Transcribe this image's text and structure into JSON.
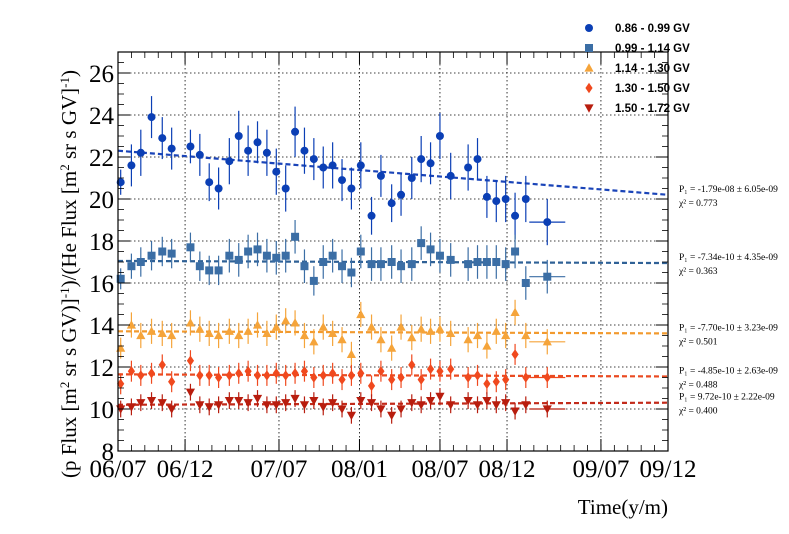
{
  "chart_data": {
    "type": "scatter",
    "xlabel": "Time(y/m)",
    "ylabel": "(p Flux [m² sr s GV]⁻¹)/(He Flux [m² sr s GV]⁻¹)",
    "ylabel_parts": {
      "main1": "(p Flux [m",
      "sup1": "2",
      "main2": " sr s GV)]",
      "sup2": "-1",
      "main3": ")/(He Flux [m",
      "sup3": "2",
      "main4": " sr s GV]",
      "sup4": "-1",
      "main5": ")"
    },
    "x_ticks": [
      {
        "label": "06/07",
        "value": 0
      },
      {
        "label": "06/12",
        "value": 5
      },
      {
        "label": "07/07",
        "value": 12
      },
      {
        "label": "08/01",
        "value": 18
      },
      {
        "label": "08/07",
        "value": 24
      },
      {
        "label": "08/12",
        "value": 29
      },
      {
        "label": "09/07",
        "value": 36
      },
      {
        "label": "09/12",
        "value": 41
      }
    ],
    "xlim": [
      0,
      41
    ],
    "y_ticks": [
      8,
      10,
      12,
      14,
      16,
      18,
      20,
      22,
      24,
      26
    ],
    "ylim": [
      8,
      27
    ],
    "grid": true,
    "legend_position": "top-right",
    "series": [
      {
        "name": "0.86 - 0.99 GV",
        "marker": "circle",
        "color": "#0b3fb5",
        "fit_color": "#1a44b8",
        "fit": {
          "p1": "P₁ = -1.79e-08 ± 6.05e-09",
          "chi2": "χ² = 0.773",
          "start": 22.3,
          "end": 20.2
        },
        "points": [
          [
            0.2,
            20.8,
            0.6
          ],
          [
            1.0,
            21.6,
            1.0
          ],
          [
            1.7,
            22.2,
            1.1
          ],
          [
            2.5,
            23.9,
            1.0
          ],
          [
            3.3,
            22.9,
            1.0
          ],
          [
            4.0,
            22.4,
            1.0
          ],
          [
            5.4,
            22.5,
            0.8
          ],
          [
            6.1,
            22.1,
            1.0
          ],
          [
            6.8,
            20.8,
            0.9
          ],
          [
            7.5,
            20.5,
            1.0
          ],
          [
            8.3,
            21.8,
            1.1
          ],
          [
            9.0,
            23.0,
            1.2
          ],
          [
            9.7,
            22.3,
            1.2
          ],
          [
            10.4,
            22.7,
            1.0
          ],
          [
            11.1,
            22.2,
            1.1
          ],
          [
            11.8,
            21.3,
            1.1
          ],
          [
            12.5,
            20.5,
            1.1
          ],
          [
            13.2,
            23.2,
            1.2
          ],
          [
            13.9,
            22.3,
            1.1
          ],
          [
            14.6,
            21.9,
            1.0
          ],
          [
            15.3,
            21.5,
            1.0
          ],
          [
            16.0,
            21.6,
            1.1
          ],
          [
            16.7,
            20.9,
            1.0
          ],
          [
            17.4,
            20.5,
            1.0
          ],
          [
            18.1,
            21.6,
            1.1
          ],
          [
            18.9,
            19.2,
            0.9
          ],
          [
            19.6,
            21.1,
            1.0
          ],
          [
            20.4,
            19.8,
            0.9
          ],
          [
            21.1,
            20.2,
            1.0
          ],
          [
            21.9,
            21.0,
            1.0
          ],
          [
            22.6,
            21.9,
            1.1
          ],
          [
            23.3,
            21.7,
            1.0
          ],
          [
            24.0,
            23.0,
            1.1
          ],
          [
            24.8,
            21.1,
            1.1
          ],
          [
            26.1,
            21.5,
            1.1
          ],
          [
            26.8,
            21.9,
            1.0
          ],
          [
            27.5,
            20.1,
            1.0
          ],
          [
            28.2,
            19.9,
            1.0
          ],
          [
            28.9,
            20.0,
            1.1
          ],
          [
            29.6,
            19.2,
            1.1
          ],
          [
            30.4,
            20.0,
            1.1
          ],
          [
            32.0,
            18.9,
            1.1
          ]
        ]
      },
      {
        "name": "0.99 - 1.14 GV",
        "marker": "square",
        "color": "#3b6ea5",
        "fit_color": "#2f6196",
        "fit": {
          "p1": "P₁ = -7.34e-10 ± 4.35e-09",
          "chi2": "χ² = 0.363",
          "start": 17.05,
          "end": 16.95
        },
        "points": [
          [
            0.2,
            16.2,
            0.5
          ],
          [
            1.0,
            16.8,
            0.6
          ],
          [
            1.7,
            17.0,
            0.7
          ],
          [
            2.5,
            17.3,
            0.7
          ],
          [
            3.3,
            17.5,
            0.7
          ],
          [
            4.0,
            17.4,
            0.7
          ],
          [
            5.4,
            17.7,
            0.7
          ],
          [
            6.1,
            16.8,
            0.7
          ],
          [
            6.8,
            16.6,
            0.7
          ],
          [
            7.5,
            16.6,
            0.7
          ],
          [
            8.3,
            17.3,
            0.8
          ],
          [
            9.0,
            17.1,
            0.8
          ],
          [
            9.7,
            17.5,
            0.8
          ],
          [
            10.4,
            17.6,
            0.8
          ],
          [
            11.1,
            17.3,
            0.8
          ],
          [
            11.8,
            17.2,
            0.8
          ],
          [
            12.5,
            17.3,
            0.8
          ],
          [
            13.2,
            18.2,
            0.8
          ],
          [
            13.9,
            16.8,
            0.8
          ],
          [
            14.6,
            16.1,
            0.7
          ],
          [
            15.3,
            17.0,
            0.8
          ],
          [
            16.0,
            17.3,
            0.8
          ],
          [
            16.7,
            16.8,
            0.8
          ],
          [
            17.4,
            16.5,
            0.7
          ],
          [
            18.1,
            17.5,
            0.8
          ],
          [
            18.9,
            16.9,
            0.8
          ],
          [
            19.6,
            16.9,
            0.8
          ],
          [
            20.4,
            17.0,
            0.8
          ],
          [
            21.1,
            16.8,
            0.8
          ],
          [
            21.9,
            16.9,
            0.8
          ],
          [
            22.6,
            17.9,
            0.8
          ],
          [
            23.3,
            17.6,
            0.8
          ],
          [
            24.0,
            17.3,
            0.8
          ],
          [
            24.8,
            17.1,
            0.8
          ],
          [
            26.1,
            16.9,
            0.8
          ],
          [
            26.8,
            17.0,
            0.8
          ],
          [
            27.5,
            17.0,
            0.8
          ],
          [
            28.2,
            17.0,
            0.8
          ],
          [
            28.9,
            16.9,
            0.8
          ],
          [
            29.6,
            17.5,
            0.8
          ],
          [
            30.4,
            16.0,
            0.8
          ],
          [
            32.0,
            16.3,
            0.8
          ]
        ]
      },
      {
        "name": "1.14 - 1.30 GV",
        "marker": "triangle-up",
        "color": "#f5a43a",
        "fit_color": "#f29a2e",
        "fit": {
          "p1": "P₁ = -7.70e-10 ± 3.23e-09",
          "chi2": "χ² = 0.501",
          "start": 13.7,
          "end": 13.6
        },
        "points": [
          [
            0.2,
            12.9,
            0.5
          ],
          [
            1.0,
            14.0,
            0.6
          ],
          [
            1.7,
            13.5,
            0.6
          ],
          [
            2.5,
            13.7,
            0.6
          ],
          [
            3.3,
            13.6,
            0.6
          ],
          [
            4.0,
            13.5,
            0.6
          ],
          [
            5.4,
            14.1,
            0.6
          ],
          [
            6.1,
            13.8,
            0.6
          ],
          [
            6.8,
            13.6,
            0.6
          ],
          [
            7.5,
            13.5,
            0.6
          ],
          [
            8.3,
            13.7,
            0.6
          ],
          [
            9.0,
            13.5,
            0.6
          ],
          [
            9.7,
            13.7,
            0.6
          ],
          [
            10.4,
            14.0,
            0.6
          ],
          [
            11.1,
            13.6,
            0.6
          ],
          [
            11.8,
            13.9,
            0.6
          ],
          [
            12.5,
            14.2,
            0.6
          ],
          [
            13.2,
            14.1,
            0.6
          ],
          [
            13.9,
            13.5,
            0.6
          ],
          [
            14.6,
            13.2,
            0.6
          ],
          [
            15.3,
            13.9,
            0.6
          ],
          [
            16.0,
            13.6,
            0.6
          ],
          [
            16.7,
            13.3,
            0.6
          ],
          [
            17.4,
            12.6,
            0.6
          ],
          [
            18.1,
            14.5,
            0.6
          ],
          [
            18.9,
            13.9,
            0.6
          ],
          [
            19.6,
            13.3,
            0.6
          ],
          [
            20.4,
            12.9,
            0.6
          ],
          [
            21.1,
            13.9,
            0.6
          ],
          [
            21.9,
            13.4,
            0.6
          ],
          [
            22.6,
            13.8,
            0.6
          ],
          [
            23.3,
            13.7,
            0.6
          ],
          [
            24.0,
            13.8,
            0.6
          ],
          [
            24.8,
            13.6,
            0.6
          ],
          [
            26.1,
            13.3,
            0.6
          ],
          [
            26.8,
            13.5,
            0.6
          ],
          [
            27.5,
            13.0,
            0.6
          ],
          [
            28.2,
            13.7,
            0.6
          ],
          [
            28.9,
            13.5,
            0.6
          ],
          [
            29.6,
            14.6,
            0.6
          ],
          [
            30.4,
            13.5,
            0.6
          ],
          [
            32.0,
            13.2,
            0.6
          ]
        ]
      },
      {
        "name": "1.30 - 1.50 GV",
        "marker": "diamond",
        "color": "#f0491e",
        "fit_color": "#ea4a21",
        "fit": {
          "p1": "P₁ = -4.85e-10 ± 2.63e-09",
          "chi2": "χ² = 0.488",
          "start": 11.65,
          "end": 11.55
        },
        "points": [
          [
            0.2,
            11.2,
            0.5
          ],
          [
            1.0,
            11.8,
            0.5
          ],
          [
            1.7,
            11.6,
            0.5
          ],
          [
            2.5,
            11.7,
            0.5
          ],
          [
            3.3,
            12.1,
            0.5
          ],
          [
            4.0,
            11.3,
            0.5
          ],
          [
            5.4,
            12.3,
            0.5
          ],
          [
            6.1,
            11.6,
            0.5
          ],
          [
            6.8,
            11.6,
            0.5
          ],
          [
            7.5,
            11.5,
            0.5
          ],
          [
            8.3,
            11.6,
            0.5
          ],
          [
            9.0,
            11.7,
            0.5
          ],
          [
            9.7,
            11.8,
            0.5
          ],
          [
            10.4,
            11.6,
            0.5
          ],
          [
            11.1,
            11.6,
            0.5
          ],
          [
            11.8,
            11.7,
            0.5
          ],
          [
            12.5,
            11.6,
            0.5
          ],
          [
            13.2,
            11.7,
            0.5
          ],
          [
            13.9,
            11.8,
            0.5
          ],
          [
            14.6,
            11.5,
            0.5
          ],
          [
            15.3,
            11.6,
            0.5
          ],
          [
            16.0,
            11.7,
            0.5
          ],
          [
            16.7,
            11.4,
            0.5
          ],
          [
            17.4,
            11.6,
            0.5
          ],
          [
            18.1,
            11.7,
            0.5
          ],
          [
            18.9,
            11.1,
            0.5
          ],
          [
            19.6,
            11.8,
            0.5
          ],
          [
            20.4,
            11.4,
            0.5
          ],
          [
            21.1,
            11.5,
            0.5
          ],
          [
            21.9,
            12.1,
            0.5
          ],
          [
            22.6,
            11.4,
            0.5
          ],
          [
            23.3,
            11.9,
            0.5
          ],
          [
            24.0,
            11.8,
            0.5
          ],
          [
            24.8,
            11.9,
            0.5
          ],
          [
            26.1,
            11.5,
            0.5
          ],
          [
            26.8,
            11.6,
            0.5
          ],
          [
            27.5,
            11.2,
            0.5
          ],
          [
            28.2,
            11.3,
            0.5
          ],
          [
            28.9,
            11.4,
            0.5
          ],
          [
            29.6,
            12.6,
            0.5
          ],
          [
            30.4,
            11.5,
            0.5
          ],
          [
            32.0,
            11.5,
            0.5
          ]
        ]
      },
      {
        "name": "1.50 - 1.72 GV",
        "marker": "triangle-down",
        "color": "#b81d0e",
        "fit_color": "#c22a1a",
        "fit": {
          "p1": "P₁ = 9.72e-10 ± 2.22e-09",
          "chi2": "χ² = 0.400",
          "start": 10.2,
          "end": 10.3
        },
        "points": [
          [
            0.2,
            10.0,
            0.4
          ],
          [
            1.0,
            10.1,
            0.4
          ],
          [
            1.7,
            10.3,
            0.4
          ],
          [
            2.5,
            10.4,
            0.4
          ],
          [
            3.3,
            10.3,
            0.4
          ],
          [
            4.0,
            10.0,
            0.4
          ],
          [
            5.4,
            10.8,
            0.4
          ],
          [
            6.1,
            10.2,
            0.4
          ],
          [
            6.8,
            10.1,
            0.4
          ],
          [
            7.5,
            10.2,
            0.4
          ],
          [
            8.3,
            10.4,
            0.4
          ],
          [
            9.0,
            10.4,
            0.4
          ],
          [
            9.7,
            10.3,
            0.4
          ],
          [
            10.4,
            10.5,
            0.4
          ],
          [
            11.1,
            10.2,
            0.4
          ],
          [
            11.8,
            10.2,
            0.4
          ],
          [
            12.5,
            10.3,
            0.4
          ],
          [
            13.2,
            10.5,
            0.4
          ],
          [
            13.9,
            10.2,
            0.4
          ],
          [
            14.6,
            10.4,
            0.4
          ],
          [
            15.3,
            10.1,
            0.4
          ],
          [
            16.0,
            10.3,
            0.4
          ],
          [
            16.7,
            10.0,
            0.4
          ],
          [
            17.4,
            9.7,
            0.4
          ],
          [
            18.1,
            10.4,
            0.4
          ],
          [
            18.9,
            10.3,
            0.4
          ],
          [
            19.6,
            10.0,
            0.4
          ],
          [
            20.4,
            9.7,
            0.4
          ],
          [
            21.1,
            10.0,
            0.4
          ],
          [
            21.9,
            10.3,
            0.4
          ],
          [
            22.6,
            10.2,
            0.4
          ],
          [
            23.3,
            10.4,
            0.4
          ],
          [
            24.0,
            10.6,
            0.4
          ],
          [
            24.8,
            10.2,
            0.4
          ],
          [
            26.1,
            10.4,
            0.4
          ],
          [
            26.8,
            10.2,
            0.4
          ],
          [
            27.5,
            10.4,
            0.4
          ],
          [
            28.2,
            10.2,
            0.4
          ],
          [
            28.9,
            10.3,
            0.4
          ],
          [
            29.6,
            9.9,
            0.4
          ],
          [
            30.4,
            10.2,
            0.4
          ],
          [
            32.0,
            10.0,
            0.4
          ]
        ]
      }
    ]
  }
}
